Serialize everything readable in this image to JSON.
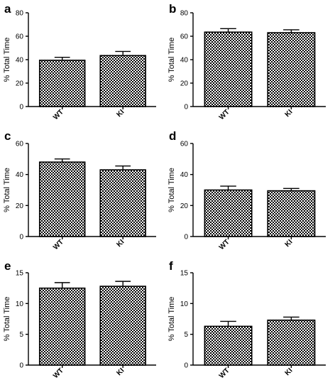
{
  "chart_data": [
    {
      "panel": "a",
      "type": "bar",
      "categories": [
        "WT",
        "KI"
      ],
      "values": [
        39.5,
        43.5
      ],
      "errors": [
        2.5,
        3.5
      ],
      "ylabel": "% Total Time",
      "ylim": [
        0,
        80
      ],
      "yticks": [
        0,
        20,
        40,
        60,
        80
      ],
      "ytick_labels": [
        "0",
        "20",
        "40",
        "60",
        "80"
      ]
    },
    {
      "panel": "b",
      "type": "bar",
      "categories": [
        "WT",
        "KI"
      ],
      "values": [
        63.5,
        63.0
      ],
      "errors": [
        3.0,
        2.5
      ],
      "ylabel": "% Total Time",
      "ylim": [
        0,
        80
      ],
      "yticks": [
        0,
        20,
        40,
        60,
        80
      ],
      "ytick_labels": [
        "0",
        "20",
        "40",
        "60",
        "80"
      ]
    },
    {
      "panel": "c",
      "type": "bar",
      "categories": [
        "WT",
        "KI"
      ],
      "values": [
        48.0,
        43.0
      ],
      "errors": [
        2.0,
        2.5
      ],
      "ylabel": "% Total Time",
      "ylim": [
        0,
        60
      ],
      "yticks": [
        0,
        20,
        40,
        60
      ],
      "ytick_labels": [
        "0",
        "20",
        "40",
        "60"
      ]
    },
    {
      "panel": "d",
      "type": "bar",
      "categories": [
        "WT",
        "KI"
      ],
      "values": [
        30.0,
        29.5
      ],
      "errors": [
        2.5,
        1.5
      ],
      "ylabel": "% Total Time",
      "ylim": [
        0,
        60
      ],
      "yticks": [
        0,
        20,
        40,
        60
      ],
      "ytick_labels": [
        "0",
        "20",
        "40",
        "60"
      ]
    },
    {
      "panel": "e",
      "type": "bar",
      "categories": [
        "WT",
        "KI"
      ],
      "values": [
        12.5,
        12.8
      ],
      "errors": [
        0.9,
        0.8
      ],
      "ylabel": "% Total Time",
      "ylim": [
        0,
        15
      ],
      "yticks": [
        0,
        5,
        10,
        15
      ],
      "ytick_labels": [
        "0",
        "5",
        "10",
        "15"
      ]
    },
    {
      "panel": "f",
      "type": "bar",
      "categories": [
        "WT",
        "KI"
      ],
      "values": [
        6.3,
        7.3
      ],
      "errors": [
        0.8,
        0.5
      ],
      "ylabel": "% Total Time",
      "ylim": [
        0,
        15
      ],
      "yticks": [
        0,
        5,
        10,
        15
      ],
      "ytick_labels": [
        "0",
        "5",
        "10",
        "15"
      ]
    }
  ]
}
